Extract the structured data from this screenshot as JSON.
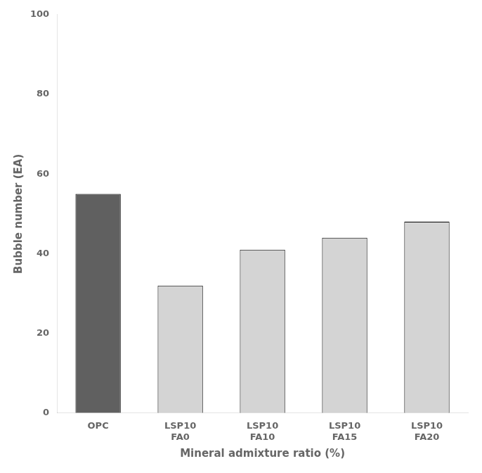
{
  "chart_data": {
    "type": "bar",
    "categories": [
      "OPC",
      "LSP10\nFA0",
      "LSP10\nFA10",
      "LSP10\nFA15",
      "LSP10\nFA20"
    ],
    "values": [
      55,
      32,
      41,
      44,
      48
    ],
    "colors": [
      "#606060",
      "#d4d4d4",
      "#d4d4d4",
      "#d4d4d4",
      "#d4d4d4"
    ],
    "xlabel": "Mineral admixture ratio (%)",
    "ylabel": "Bubble number (EA)",
    "ylim": [
      0,
      100
    ],
    "yticks": [
      0,
      20,
      40,
      60,
      80,
      100
    ],
    "grid": false
  }
}
